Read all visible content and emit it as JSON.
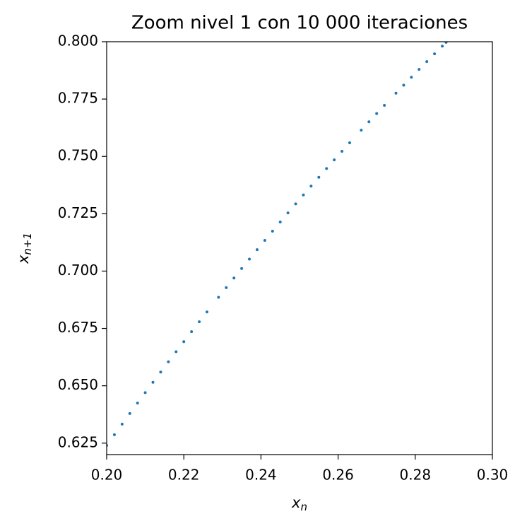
{
  "chart_data": {
    "type": "scatter",
    "title": "Zoom nivel 1 con 10 000 iteraciones",
    "xlabel": {
      "text": "x",
      "subscript": "n"
    },
    "ylabel": {
      "text": "x",
      "subscript": "n+1"
    },
    "color": "#1f77b4",
    "xlim": [
      0.2,
      0.3
    ],
    "ylim": [
      0.62,
      0.8
    ],
    "xticks": [
      {
        "value": 0.2,
        "label": "0.20"
      },
      {
        "value": 0.22,
        "label": "0.22"
      },
      {
        "value": 0.24,
        "label": "0.24"
      },
      {
        "value": 0.26,
        "label": "0.26"
      },
      {
        "value": 0.28,
        "label": "0.28"
      },
      {
        "value": 0.3,
        "label": "0.30"
      }
    ],
    "yticks": [
      0.625,
      {
        "value": 0.65,
        "label": "0.650"
      },
      0.675,
      {
        "value": 0.7,
        "label": "0.700"
      },
      0.725,
      {
        "value": 0.75,
        "label": "0.750"
      },
      0.775,
      {
        "value": 0.8,
        "label": "0.800"
      }
    ],
    "x": [
      0.2,
      0.202,
      0.204,
      0.206,
      0.208,
      0.21,
      0.212,
      0.214,
      0.216,
      0.218,
      0.22,
      0.222,
      0.224,
      0.226,
      0.229,
      0.231,
      0.233,
      0.235,
      0.237,
      0.239,
      0.241,
      0.243,
      0.245,
      0.247,
      0.249,
      0.251,
      0.253,
      0.255,
      0.257,
      0.259,
      0.261,
      0.263,
      0.266,
      0.268,
      0.27,
      0.272,
      0.275,
      0.277,
      0.279,
      0.281,
      0.283,
      0.285,
      0.287,
      0.288
    ],
    "values": [
      0.624,
      0.62866,
      0.6333,
      0.6379,
      0.64247,
      0.64701,
      0.65152,
      0.656,
      0.66044,
      0.66486,
      0.66924,
      0.67359,
      0.67791,
      0.6822,
      0.68858,
      0.69279,
      0.69697,
      0.70112,
      0.70524,
      0.70933,
      0.71338,
      0.71741,
      0.7214,
      0.72536,
      0.7293,
      0.7332,
      0.73706,
      0.7409,
      0.74471,
      0.74848,
      0.75223,
      0.75594,
      0.76145,
      0.76509,
      0.76869,
      0.77226,
      0.77756,
      0.78106,
      0.78452,
      0.78795,
      0.79135,
      0.79472,
      0.79806,
      0.79972
    ]
  }
}
